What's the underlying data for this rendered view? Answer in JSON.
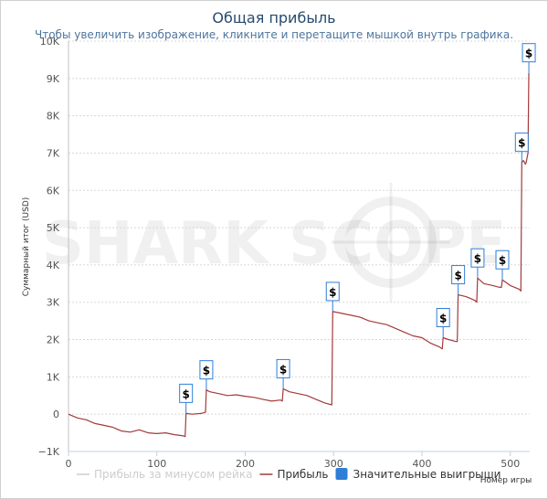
{
  "chart_data": {
    "type": "line",
    "title": "Общая прибыль",
    "subtitle": "Чтобы увеличить изображение, кликните и перетащите мышкой внутрь графика.",
    "xlabel": "Номер игры",
    "ylabel": "Суммарный итог (USD)",
    "xlim": [
      0,
      522
    ],
    "ylim": [
      -1000,
      10000
    ],
    "x_ticks": [
      0,
      100,
      200,
      300,
      400,
      500
    ],
    "y_ticks": [
      -1000,
      0,
      1000,
      2000,
      3000,
      4000,
      5000,
      6000,
      7000,
      8000,
      9000,
      10000
    ],
    "y_tick_labels": [
      "−1K",
      "0",
      "1K",
      "2K",
      "3K",
      "4K",
      "5K",
      "6K",
      "7K",
      "8K",
      "9K",
      "10K"
    ],
    "grid": true,
    "legend_position": "bottom",
    "series": [
      {
        "name": "Прибыль",
        "color": "#a33a3a",
        "x": [
          0,
          10,
          20,
          30,
          40,
          50,
          60,
          70,
          80,
          90,
          100,
          110,
          120,
          130,
          132,
          133,
          140,
          150,
          155,
          156,
          160,
          170,
          180,
          190,
          200,
          210,
          220,
          230,
          240,
          242,
          243,
          250,
          260,
          270,
          280,
          290,
          298,
          299,
          310,
          320,
          330,
          340,
          350,
          360,
          370,
          380,
          390,
          400,
          410,
          420,
          423,
          424,
          430,
          438,
          440,
          441,
          450,
          460,
          462,
          463,
          470,
          480,
          488,
          490,
          491,
          500,
          510,
          512,
          513,
          515,
          517,
          518,
          520,
          521
        ],
        "values": [
          0,
          -100,
          -150,
          -250,
          -300,
          -350,
          -450,
          -480,
          -420,
          -500,
          -520,
          -500,
          -550,
          -580,
          -600,
          20,
          0,
          20,
          50,
          650,
          600,
          550,
          500,
          520,
          480,
          450,
          400,
          350,
          380,
          350,
          680,
          600,
          550,
          500,
          400,
          300,
          250,
          2750,
          2700,
          2650,
          2600,
          2500,
          2450,
          2400,
          2300,
          2200,
          2100,
          2050,
          1900,
          1800,
          1750,
          2050,
          2000,
          1950,
          1950,
          3200,
          3150,
          3050,
          3000,
          3650,
          3500,
          3450,
          3400,
          3400,
          3600,
          3450,
          3350,
          3300,
          6750,
          6800,
          6700,
          6750,
          7000,
          9150
        ]
      }
    ],
    "markers": {
      "name": "Значительные выигрыши",
      "symbol": "$",
      "x": [
        133,
        156,
        243,
        299,
        424,
        441,
        463,
        491,
        513,
        521
      ],
      "values": [
        20,
        650,
        680,
        2750,
        2050,
        3200,
        3650,
        3600,
        6750,
        9150
      ]
    },
    "legend": [
      {
        "name": "Прибыль за минусом рейка",
        "color": "#cccccc",
        "kind": "line",
        "active": false
      },
      {
        "name": "Прибыль",
        "color": "#a33a3a",
        "kind": "line",
        "active": true
      },
      {
        "name": "Значительные выигрыши",
        "color": "#2f7ed8",
        "kind": "square",
        "active": true
      }
    ],
    "watermark": "SHARK SCOPE"
  }
}
